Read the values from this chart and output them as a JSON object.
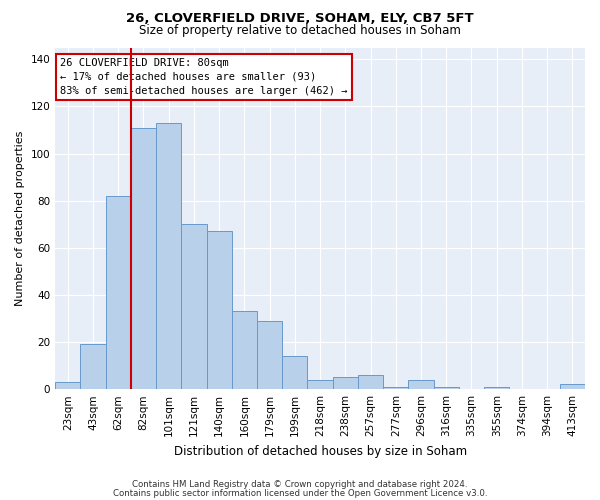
{
  "title1": "26, CLOVERFIELD DRIVE, SOHAM, ELY, CB7 5FT",
  "title2": "Size of property relative to detached houses in Soham",
  "xlabel": "Distribution of detached houses by size in Soham",
  "ylabel": "Number of detached properties",
  "bar_labels": [
    "23sqm",
    "43sqm",
    "62sqm",
    "82sqm",
    "101sqm",
    "121sqm",
    "140sqm",
    "160sqm",
    "179sqm",
    "199sqm",
    "218sqm",
    "238sqm",
    "257sqm",
    "277sqm",
    "296sqm",
    "316sqm",
    "335sqm",
    "355sqm",
    "374sqm",
    "394sqm",
    "413sqm"
  ],
  "bar_values": [
    3,
    19,
    82,
    111,
    113,
    70,
    67,
    33,
    29,
    14,
    4,
    5,
    6,
    1,
    4,
    1,
    0,
    1,
    0,
    0,
    2
  ],
  "bar_color": "#b8d0ea",
  "bar_edge_color": "#6699cc",
  "vline_color": "#cc0000",
  "annotation_text": "26 CLOVERFIELD DRIVE: 80sqm\n← 17% of detached houses are smaller (93)\n83% of semi-detached houses are larger (462) →",
  "annotation_box_color": "#ffffff",
  "annotation_border_color": "#cc0000",
  "ylim": [
    0,
    145
  ],
  "yticks": [
    0,
    20,
    40,
    60,
    80,
    100,
    120,
    140
  ],
  "bg_color": "#e8eef8",
  "grid_color": "#ffffff",
  "footer1": "Contains HM Land Registry data © Crown copyright and database right 2024.",
  "footer2": "Contains public sector information licensed under the Open Government Licence v3.0."
}
